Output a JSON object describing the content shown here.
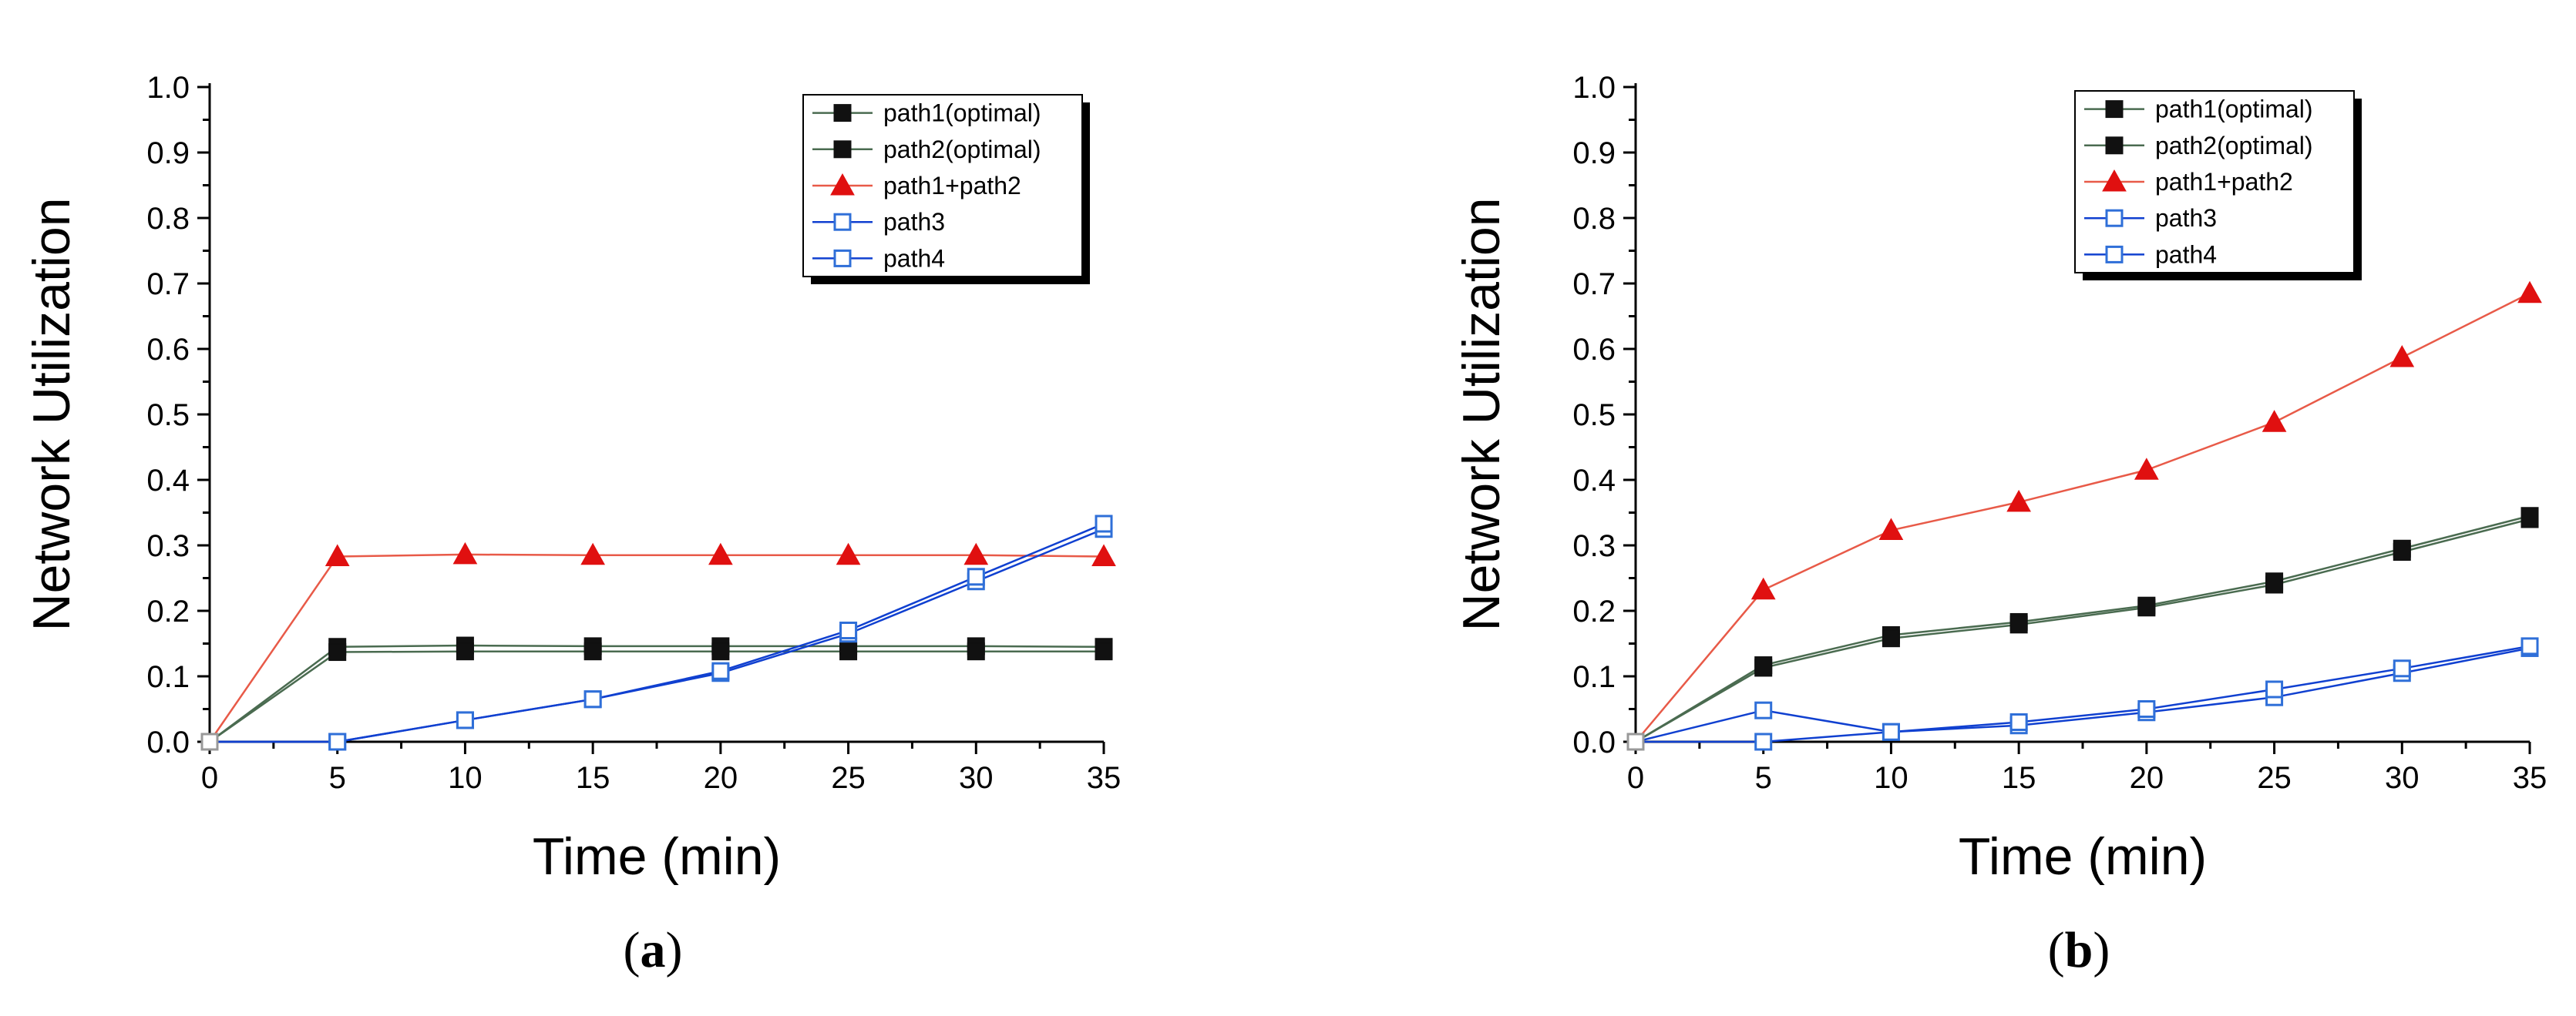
{
  "colors": {
    "optimal": "#111111",
    "optimal_line": "#4a6b50",
    "combined": "#e01010",
    "combined_line": "#e85a48",
    "path": "#2f6fd8",
    "path_line": "#1040d0"
  },
  "chart_data": [
    {
      "type": "line",
      "panel_label": "a",
      "title": "",
      "xlabel": "Time (min)",
      "ylabel": "Network Utilization",
      "xlim": [
        0,
        35
      ],
      "ylim": [
        0,
        1.0
      ],
      "x_ticks": [
        "0",
        "5",
        "10",
        "15",
        "20",
        "25",
        "30",
        "35"
      ],
      "y_ticks": [
        "0.0",
        "0.1",
        "0.2",
        "0.3",
        "0.4",
        "0.5",
        "0.6",
        "0.7",
        "0.8",
        "0.9",
        "1.0"
      ],
      "legend": "top-right",
      "x": [
        0,
        5,
        10,
        15,
        20,
        25,
        30,
        35
      ],
      "series": [
        {
          "name": "path1(optimal)",
          "marker": "square-filled",
          "color_key": "optimal",
          "values": [
            0,
            0.145,
            0.147,
            0.146,
            0.146,
            0.146,
            0.146,
            0.145
          ]
        },
        {
          "name": "path2(optimal)",
          "marker": "square-filled",
          "color_key": "optimal",
          "values": [
            0,
            0.137,
            0.138,
            0.138,
            0.138,
            0.138,
            0.138,
            0.138
          ]
        },
        {
          "name": "path1+path2",
          "marker": "triangle-filled",
          "color_key": "combined",
          "values": [
            0,
            0.283,
            0.286,
            0.285,
            0.285,
            0.285,
            0.285,
            0.283
          ]
        },
        {
          "name": "path3",
          "marker": "square-open",
          "color_key": "path",
          "values": [
            0,
            0,
            0.033,
            0.065,
            0.105,
            0.165,
            0.245,
            0.325
          ]
        },
        {
          "name": "path4",
          "marker": "square-open",
          "color_key": "path",
          "values": [
            0,
            0,
            0.033,
            0.065,
            0.108,
            0.17,
            0.252,
            0.333
          ]
        }
      ]
    },
    {
      "type": "line",
      "panel_label": "b",
      "title": "",
      "xlabel": "Time (min)",
      "ylabel": "Network Utilization",
      "xlim": [
        0,
        35
      ],
      "ylim": [
        0,
        1.0
      ],
      "x_ticks": [
        "0",
        "5",
        "10",
        "15",
        "20",
        "25",
        "30",
        "35"
      ],
      "y_ticks": [
        "0.0",
        "0.1",
        "0.2",
        "0.3",
        "0.4",
        "0.5",
        "0.6",
        "0.7",
        "0.8",
        "0.9",
        "1.0"
      ],
      "legend": "top-left",
      "x": [
        0,
        5,
        10,
        15,
        20,
        25,
        30,
        35
      ],
      "series": [
        {
          "name": "path1(optimal)",
          "marker": "square-filled",
          "color_key": "optimal",
          "values": [
            0,
            0.117,
            0.163,
            0.183,
            0.208,
            0.245,
            0.295,
            0.345
          ]
        },
        {
          "name": "path2(optimal)",
          "marker": "square-filled",
          "color_key": "optimal",
          "values": [
            0,
            0.113,
            0.158,
            0.179,
            0.205,
            0.24,
            0.29,
            0.34
          ]
        },
        {
          "name": "path1+path2",
          "marker": "triangle-filled",
          "color_key": "combined",
          "values": [
            0,
            0.232,
            0.323,
            0.366,
            0.415,
            0.488,
            0.587,
            0.685
          ]
        },
        {
          "name": "path3",
          "marker": "square-open",
          "color_key": "path",
          "values": [
            0,
            0.048,
            0.015,
            0.025,
            0.045,
            0.068,
            0.105,
            0.143
          ]
        },
        {
          "name": "path4",
          "marker": "square-open",
          "color_key": "path",
          "values": [
            0,
            0,
            0.015,
            0.03,
            0.05,
            0.08,
            0.112,
            0.146
          ]
        }
      ]
    }
  ]
}
